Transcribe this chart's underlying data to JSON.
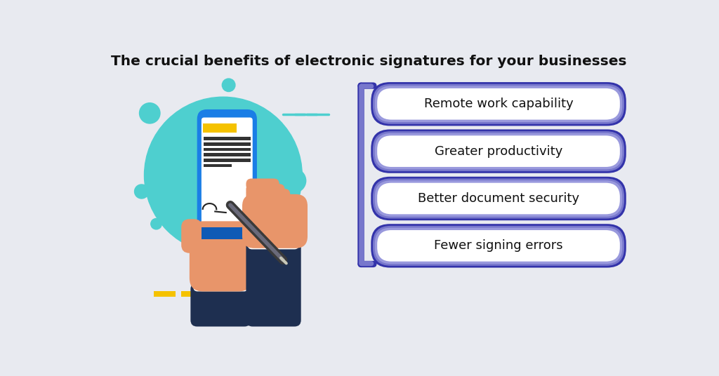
{
  "title": "The crucial benefits of electronic signatures for your businesses",
  "title_fontsize": 14.5,
  "title_fontweight": "bold",
  "background_color": "#e8eaf0",
  "benefits": [
    "Remote work capability",
    "Greater productivity",
    "Better document security",
    "Fewer signing errors"
  ],
  "box_fill_color": "#ffffff",
  "box_outer_color": "#3333aa",
  "box_mid_color": "#7777cc",
  "box_inner_color": "#9999dd",
  "text_color": "#111111",
  "text_fontsize": 13,
  "teal_color": "#4ecfcf",
  "phone_blue": "#1a7ee6",
  "phone_dark_blue": "#0f5ab5",
  "phone_bottom_blue": "#1a7ee6",
  "yellow_color": "#f5c200",
  "skin_color": "#e8956a",
  "skin_shadow": "#d4845a",
  "sleeve_color": "#1e2f50",
  "white_color": "#ffffff",
  "line_gray": "#555555",
  "line_light_gray": "#aaaaaa"
}
